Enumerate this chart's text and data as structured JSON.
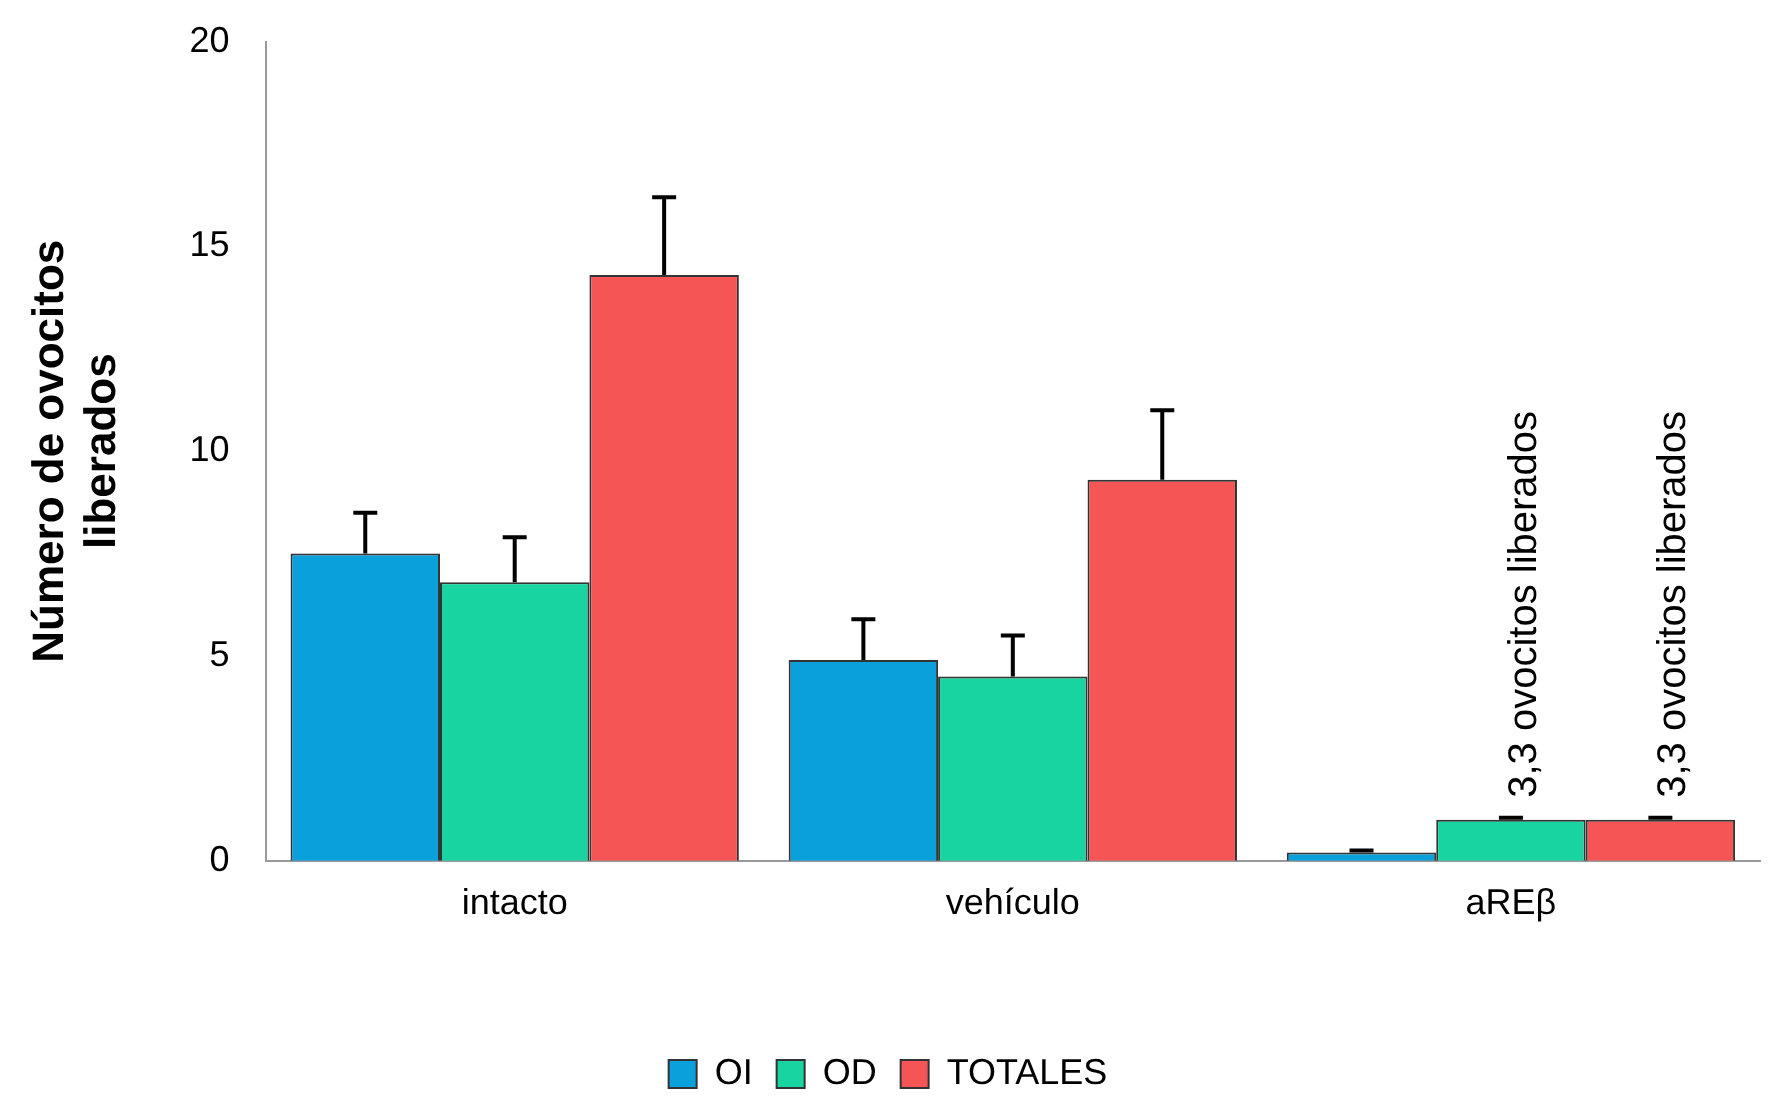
{
  "chart_data": {
    "type": "bar",
    "ylabel": "Número de ovocitos liberados",
    "categories": [
      "intacto",
      "vehículo",
      "aREβ"
    ],
    "series": [
      {
        "name": "OI",
        "color": "#0aa0dc",
        "values": [
          7.5,
          4.9,
          0.2
        ],
        "errors": [
          1.0,
          1.0,
          0.05
        ]
      },
      {
        "name": "OD",
        "color": "#17d4a0",
        "values": [
          6.8,
          4.5,
          1.0
        ],
        "errors": [
          1.1,
          1.0,
          0.05
        ]
      },
      {
        "name": "TOTALES",
        "color": "#f55555",
        "values": [
          14.3,
          9.3,
          1.0
        ],
        "errors": [
          1.9,
          1.7,
          0.05
        ]
      }
    ],
    "annotations": [
      "3,3 ovocitos liberados",
      "3,3 ovocitos liberados"
    ],
    "ylim": [
      0,
      20
    ],
    "yticks": [
      0,
      5,
      10,
      15,
      20
    ],
    "grid": false,
    "legend": "bottom"
  }
}
